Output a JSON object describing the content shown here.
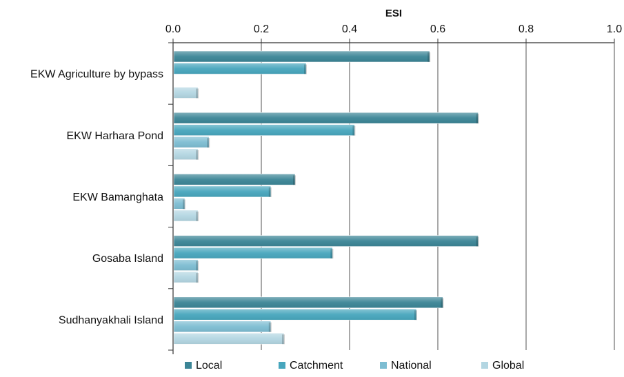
{
  "chart_data": {
    "type": "bar",
    "orientation": "horizontal",
    "title": "ESI",
    "xlabel": "",
    "ylabel": "",
    "xlim": [
      0,
      1
    ],
    "xticks": [
      "0.0",
      "0.2",
      "0.4",
      "0.6",
      "0.8",
      "1.0"
    ],
    "xaxis_position": "top",
    "grid": "vertical",
    "legend": "bottom",
    "categories": [
      "EKW Agriculture by bypass",
      "EKW Harhara Pond",
      "EKW Bamanghata",
      "Gosaba Island",
      "Sudhanyakhali Island"
    ],
    "series": [
      {
        "name": "Local",
        "color": "#3B8596",
        "values": [
          0.58,
          0.69,
          0.275,
          0.69,
          0.61
        ]
      },
      {
        "name": "Catchment",
        "color": "#47A6BD",
        "values": [
          0.3,
          0.41,
          0.22,
          0.36,
          0.55
        ]
      },
      {
        "name": "National",
        "color": "#7DBDD2",
        "values": [
          0.0,
          0.08,
          0.025,
          0.055,
          0.22
        ]
      },
      {
        "name": "Global",
        "color": "#B3D6E2",
        "values": [
          0.055,
          0.055,
          0.055,
          0.055,
          0.25
        ]
      }
    ]
  }
}
